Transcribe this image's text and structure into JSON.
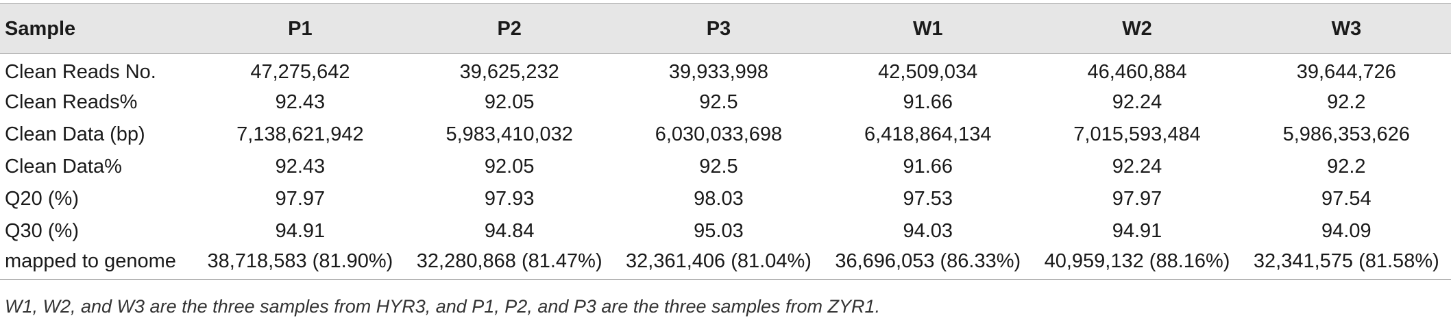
{
  "table": {
    "headers": [
      "Sample",
      "P1",
      "P2",
      "P3",
      "W1",
      "W2",
      "W3"
    ],
    "rows": [
      {
        "label": "Clean Reads No.",
        "values": [
          "47,275,642",
          "39,625,232",
          "39,933,998",
          "42,509,034",
          "46,460,884",
          "39,644,726"
        ]
      },
      {
        "label": "Clean Reads%",
        "values": [
          "92.43",
          "92.05",
          "92.5",
          "91.66",
          "92.24",
          "92.2"
        ]
      },
      {
        "label": "Clean Data (bp)",
        "values": [
          "7,138,621,942",
          "5,983,410,032",
          "6,030,033,698",
          "6,418,864,134",
          "7,015,593,484",
          "5,986,353,626"
        ]
      },
      {
        "label": "Clean Data%",
        "values": [
          "92.43",
          "92.05",
          "92.5",
          "91.66",
          "92.24",
          "92.2"
        ]
      },
      {
        "label": "Q20 (%)",
        "values": [
          "97.97",
          "97.93",
          "98.03",
          "97.53",
          "97.97",
          "97.54"
        ]
      },
      {
        "label": "Q30 (%)",
        "values": [
          "94.91",
          "94.84",
          "95.03",
          "94.03",
          "94.91",
          "94.09"
        ]
      },
      {
        "label": "mapped to genome",
        "values": [
          "38,718,583 (81.90%)",
          "32,280,868 (81.47%)",
          "32,361,406 (81.04%)",
          "36,696,053 (86.33%)",
          "40,959,132 (88.16%)",
          "32,341,575 (81.58%)"
        ]
      }
    ]
  },
  "footnote": "W1, W2, and W3 are the three samples from HYR3, and P1, P2, and P3 are the three samples from ZYR1."
}
